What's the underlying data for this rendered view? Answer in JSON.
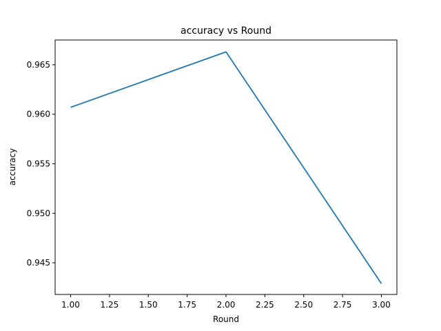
{
  "chart_data": {
    "type": "line",
    "title": "accuracy vs Round",
    "xlabel": "Round",
    "ylabel": "accuracy",
    "x": [
      1.0,
      2.0,
      3.0
    ],
    "series": [
      {
        "values": [
          0.9607,
          0.9663,
          0.9429
        ],
        "color": "#1f77b4"
      }
    ],
    "xticks": [
      1.0,
      1.25,
      1.5,
      1.75,
      2.0,
      2.25,
      2.5,
      2.75,
      3.0
    ],
    "xtick_labels": [
      "1.00",
      "1.25",
      "1.50",
      "1.75",
      "2.00",
      "2.25",
      "2.50",
      "2.75",
      "3.00"
    ],
    "yticks": [
      0.945,
      0.95,
      0.955,
      0.96,
      0.965
    ],
    "ytick_labels": [
      "0.945",
      "0.950",
      "0.955",
      "0.960",
      "0.965"
    ],
    "xlim": [
      0.9,
      3.1
    ],
    "ylim": [
      0.9418,
      0.9675
    ],
    "grid": false,
    "legend": "none"
  }
}
